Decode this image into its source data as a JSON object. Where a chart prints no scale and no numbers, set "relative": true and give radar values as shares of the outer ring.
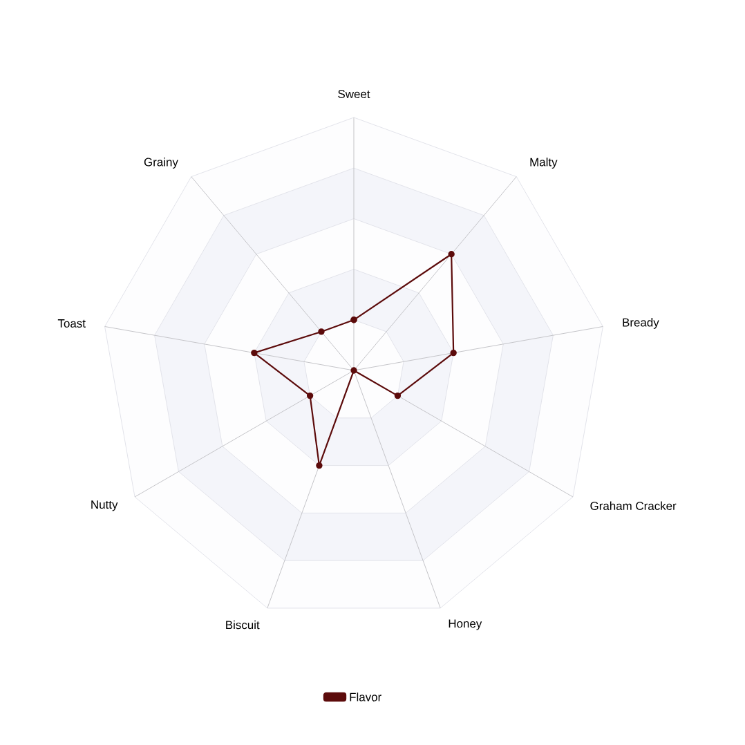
{
  "chart_data": {
    "type": "radar",
    "relative": true,
    "grid": true,
    "legend": "bottom",
    "marker": "circle",
    "categories": [
      "Sweet",
      "Malty",
      "Bready",
      "Graham Cracker",
      "Honey",
      "Biscuit",
      "Nutty",
      "Toast",
      "Grainy"
    ],
    "series": [
      {
        "name": "Flavor",
        "color": "#5c0b0b",
        "values": [
          0.2,
          0.6,
          0.4,
          0.2,
          0,
          0.4,
          0.2,
          0.4,
          0.2
        ]
      }
    ]
  }
}
